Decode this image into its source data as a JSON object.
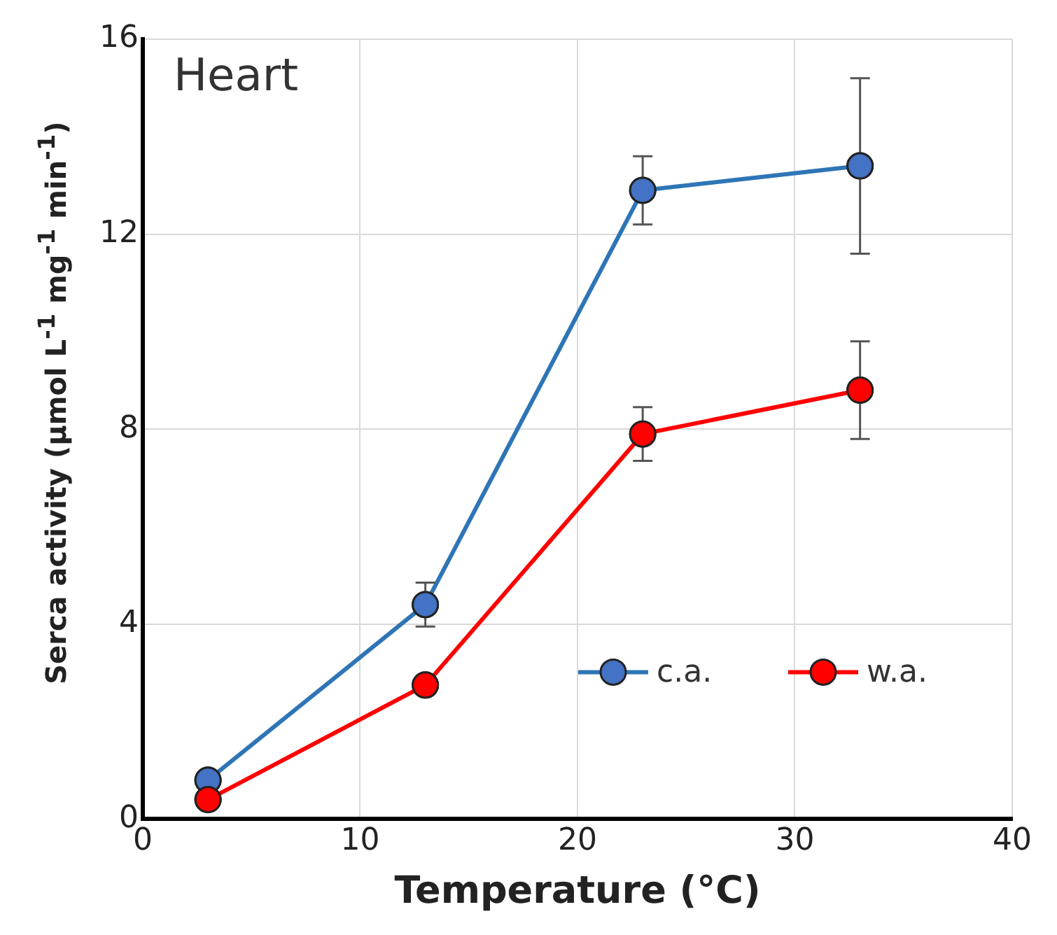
{
  "chart_data": {
    "type": "line",
    "xlabel": "Temperature (°C)",
    "ylabel": "Serca activity (µmol L$^{-1}$ mg$^{-1}$ min$^{-1}$)",
    "annotations": [
      "Heart"
    ],
    "x": [
      3,
      13,
      23,
      33
    ],
    "xlim": [
      0,
      40
    ],
    "xticks": [
      0,
      10,
      20,
      30,
      40
    ],
    "ylim": [
      0,
      16
    ],
    "yticks": [
      0,
      4,
      8,
      12,
      16
    ],
    "grid": true,
    "legend": "bottom right",
    "marker": "circle",
    "line_style": "solid",
    "series": [
      {
        "name": "c.a.",
        "color": "#4472c4",
        "values": [
          0.8,
          4.4,
          12.9,
          13.4
        ],
        "errors": [
          null,
          0.45,
          0.7,
          1.8
        ]
      },
      {
        "name": "w.a.",
        "color": "#ff0000",
        "values": [
          0.4,
          2.75,
          7.9,
          8.8
        ],
        "errors": [
          null,
          null,
          0.55,
          1.0
        ]
      }
    ]
  }
}
